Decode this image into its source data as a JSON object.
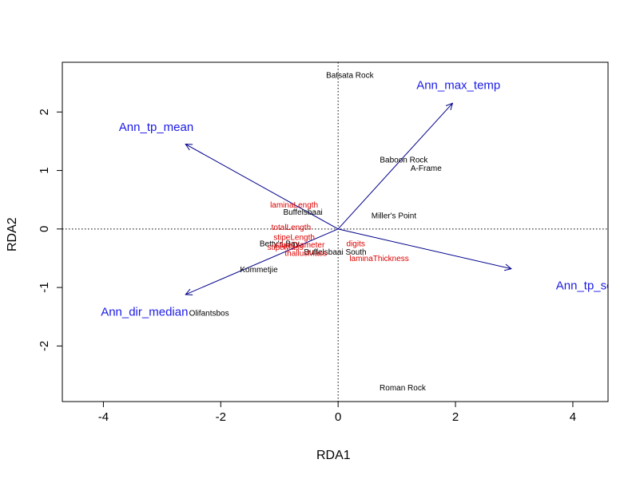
{
  "chart_data": {
    "type": "scatter",
    "subtype": "rda-triplot",
    "title": "",
    "xlabel": "RDA1",
    "ylabel": "RDA2",
    "xlim": [
      -4.7,
      4.6
    ],
    "ylim": [
      -2.95,
      2.85
    ],
    "x_ticks": [
      -4,
      -2,
      0,
      2,
      4
    ],
    "y_ticks": [
      -2,
      -1,
      0,
      1,
      2
    ],
    "reference_lines": {
      "x": 0,
      "y": 0,
      "style": "dotted"
    },
    "colors": {
      "sites": "#000000",
      "species": "#dd0000",
      "biplot": "#1a1ae6",
      "arrow": "#00008b",
      "frame": "#000000"
    },
    "sites": [
      {
        "label": "Batsata Rock",
        "x": 0.2,
        "y": 2.62
      },
      {
        "label": "Baboon Rock",
        "x": 1.12,
        "y": 1.17
      },
      {
        "label": "A-Frame",
        "x": 1.5,
        "y": 1.03
      },
      {
        "label": "Buffelsbaai",
        "x": -0.6,
        "y": 0.28
      },
      {
        "label": "Miller's Point",
        "x": 0.95,
        "y": 0.22
      },
      {
        "label": "Betty's Bay",
        "x": -1.0,
        "y": -0.26
      },
      {
        "label": "Buffelsbaai South",
        "x": -0.05,
        "y": -0.4
      },
      {
        "label": "Kommetjie",
        "x": -1.35,
        "y": -0.7
      },
      {
        "label": "Olifantsbos",
        "x": -2.2,
        "y": -1.45
      },
      {
        "label": "Roman Rock",
        "x": 1.1,
        "y": -2.72
      }
    ],
    "species": [
      {
        "label": "laminaLength",
        "x": -0.75,
        "y": 0.4
      },
      {
        "label": "totalLength",
        "x": -0.8,
        "y": 0.02
      },
      {
        "label": "stipeLength",
        "x": -0.75,
        "y": -0.15
      },
      {
        "label": "stipeDiameter",
        "x": -0.65,
        "y": -0.28
      },
      {
        "label": "stipeMass",
        "x": -0.9,
        "y": -0.32
      },
      {
        "label": "thallusMass",
        "x": -0.55,
        "y": -0.42
      },
      {
        "label": "digits",
        "x": 0.3,
        "y": -0.26
      },
      {
        "label": "laminaThickness",
        "x": 0.7,
        "y": -0.51
      }
    ],
    "biplot_arrows": [
      {
        "label": "Ann_max_temp",
        "x": 1.95,
        "y": 2.15,
        "label_x": 2.05,
        "label_y": 2.45
      },
      {
        "label": "Ann_tp_mean",
        "x": -2.6,
        "y": 1.45,
        "label_x": -3.1,
        "label_y": 1.73
      },
      {
        "label": "Ann_tp_sd",
        "x": 2.95,
        "y": -0.68,
        "label_x": 4.2,
        "label_y": -0.98
      },
      {
        "label": "Ann_dir_median",
        "x": -2.6,
        "y": -1.12,
        "label_x": -3.3,
        "label_y": -1.43
      }
    ]
  }
}
